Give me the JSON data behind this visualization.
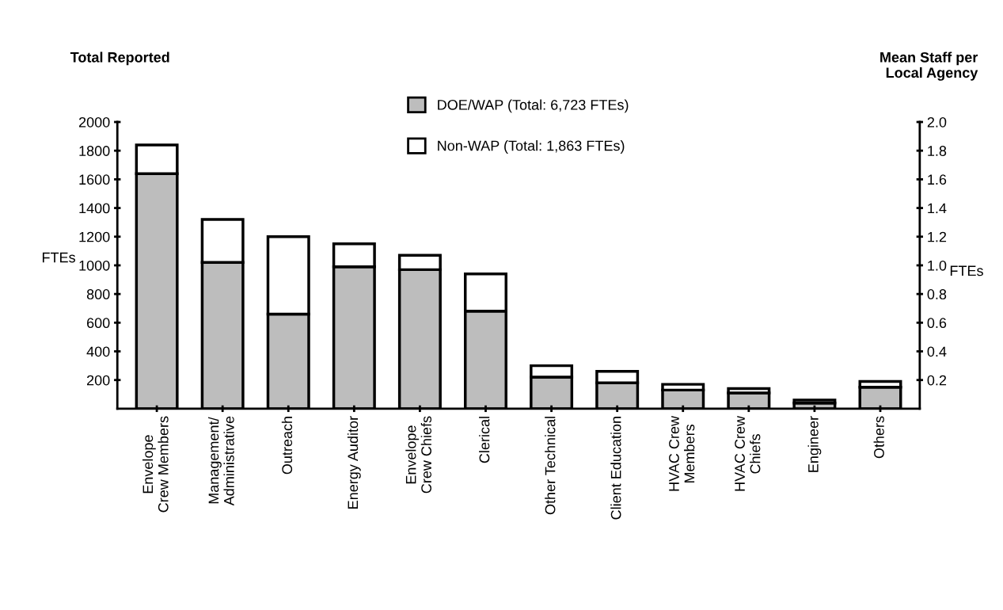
{
  "chart_data": {
    "type": "bar",
    "stacked": true,
    "categories": [
      "Envelope\nCrew Members",
      "Management/\nAdministrative",
      "Outreach",
      "Energy Auditor",
      "Envelope\nCrew Chiefs",
      "Clerical",
      "Other Technical",
      "Client Education",
      "HVAC Crew\nMembers",
      "HVAC Crew\nChiefs",
      "Engineer",
      "Others"
    ],
    "series": [
      {
        "name": "DOE/WAP (Total: 6,723 FTEs)",
        "color": "#bdbdbd",
        "values": [
          1640,
          1020,
          660,
          990,
          970,
          680,
          220,
          180,
          130,
          110,
          40,
          150
        ]
      },
      {
        "name": "Non-WAP (Total: 1,863 FTEs)",
        "color": "#ffffff",
        "values": [
          200,
          300,
          540,
          160,
          100,
          260,
          80,
          80,
          40,
          30,
          20,
          40
        ]
      }
    ],
    "ylabel": "FTEs",
    "y2label": "FTEs",
    "ylim": [
      0,
      2000
    ],
    "yticks": [
      200,
      400,
      600,
      800,
      1000,
      1200,
      1400,
      1600,
      1800,
      2000
    ],
    "y2lim": [
      0,
      2.0
    ],
    "y2ticks": [
      {
        "value": 0.2,
        "label": "0.2"
      },
      {
        "value": 0.4,
        "label": "0.4"
      },
      {
        "value": 0.6,
        "label": "0.6"
      },
      {
        "value": 0.8,
        "label": "0.8"
      },
      {
        "value": 1.0,
        "label": "1.0"
      },
      {
        "value": 1.2,
        "label": "1.2"
      },
      {
        "value": 1.4,
        "label": "1.4"
      },
      {
        "value": 1.6,
        "label": "1.6"
      },
      {
        "value": 1.8,
        "label": "1.8"
      },
      {
        "value": 2.0,
        "label": "2.0"
      }
    ],
    "annotations": [
      "Total Reported",
      "Mean Staff per\nLocal Agency"
    ],
    "legend": "top",
    "grid": false
  }
}
